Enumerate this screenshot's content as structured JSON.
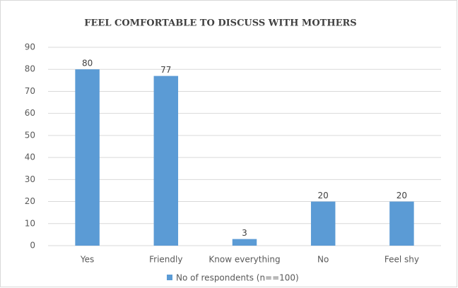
{
  "chart_data": {
    "type": "bar",
    "title": "FEEL COMFORTABLE TO DISCUSS WITH MOTHERS",
    "categories": [
      "Yes",
      "Friendly",
      "Know everything",
      "No",
      "Feel shy"
    ],
    "series": [
      {
        "name": "No of respondents (n==100)",
        "color": "#5b9bd5",
        "values": [
          80,
          77,
          3,
          20,
          20
        ]
      }
    ],
    "ylim": [
      0,
      90
    ],
    "yticks": [
      0,
      10,
      20,
      30,
      40,
      50,
      60,
      70,
      80,
      90
    ],
    "grid": true,
    "legend": "bottom",
    "data_labels": true
  }
}
